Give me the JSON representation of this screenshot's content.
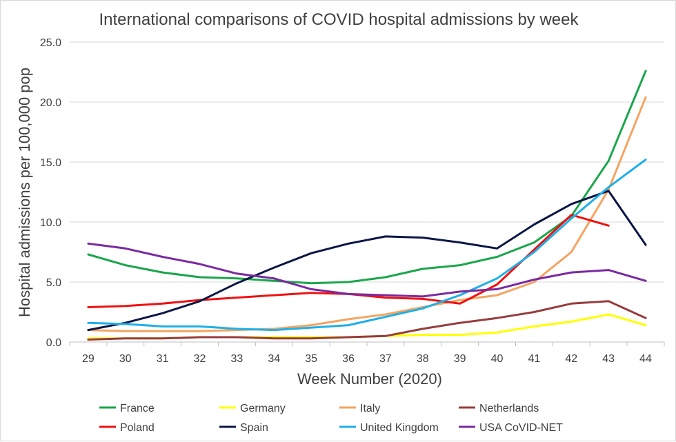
{
  "chart_data": {
    "type": "line",
    "title": "International comparisons of COVID hospital admissions by week",
    "xlabel": "Week Number (2020)",
    "ylabel": "Hospital admissions per 100,000 pop",
    "ylim": [
      0,
      25
    ],
    "yticks": [
      "0.0",
      "5.0",
      "10.0",
      "15.0",
      "20.0",
      "25.0"
    ],
    "grid": "horizontal",
    "legend_position": "bottom",
    "categories": [
      "29",
      "30",
      "31",
      "32",
      "33",
      "34",
      "35",
      "36",
      "37",
      "38",
      "39",
      "40",
      "41",
      "42",
      "43",
      "44"
    ],
    "series": [
      {
        "name": "France",
        "color": "#1aa64a",
        "values": [
          7.3,
          6.4,
          5.8,
          5.4,
          5.3,
          5.1,
          4.9,
          5.0,
          5.4,
          6.1,
          6.4,
          7.1,
          8.3,
          10.5,
          15.1,
          22.6
        ]
      },
      {
        "name": "Germany",
        "color": "#ffff00",
        "values": [
          0.3,
          0.3,
          0.3,
          0.4,
          0.4,
          0.4,
          0.4,
          0.4,
          0.5,
          0.6,
          0.6,
          0.8,
          1.3,
          1.7,
          2.3,
          1.4
        ]
      },
      {
        "name": "Italy",
        "color": "#f4a460",
        "values": [
          1.0,
          0.9,
          0.9,
          0.9,
          1.0,
          1.1,
          1.4,
          1.9,
          2.3,
          2.9,
          3.5,
          3.9,
          5.0,
          7.5,
          12.7,
          20.4
        ]
      },
      {
        "name": "Netherlands",
        "color": "#963c3c",
        "values": [
          0.2,
          0.3,
          0.3,
          0.4,
          0.4,
          0.3,
          0.3,
          0.4,
          0.5,
          1.1,
          1.6,
          2.0,
          2.5,
          3.2,
          3.4,
          2.0
        ]
      },
      {
        "name": "Poland",
        "color": "#ee1111",
        "values": [
          2.9,
          3.0,
          3.2,
          3.5,
          3.7,
          3.9,
          4.1,
          4.0,
          3.7,
          3.6,
          3.2,
          4.8,
          7.7,
          10.6,
          9.7,
          null
        ]
      },
      {
        "name": "Spain",
        "color": "#0b1645",
        "values": [
          1.0,
          1.6,
          2.4,
          3.4,
          4.9,
          6.2,
          7.4,
          8.2,
          8.8,
          8.7,
          8.3,
          7.8,
          9.8,
          11.5,
          12.6,
          8.1
        ]
      },
      {
        "name": "United Kingdom",
        "color": "#1fb0e8",
        "values": [
          1.6,
          1.5,
          1.3,
          1.3,
          1.1,
          1.0,
          1.2,
          1.4,
          2.1,
          2.8,
          3.9,
          5.3,
          7.5,
          10.3,
          12.9,
          15.2
        ]
      },
      {
        "name": "USA CoVID-NET",
        "color": "#7a2aa0",
        "values": [
          8.2,
          7.8,
          7.1,
          6.5,
          5.7,
          5.3,
          4.4,
          4.0,
          3.9,
          3.8,
          4.2,
          4.4,
          5.2,
          5.8,
          6.0,
          5.1
        ]
      }
    ]
  }
}
